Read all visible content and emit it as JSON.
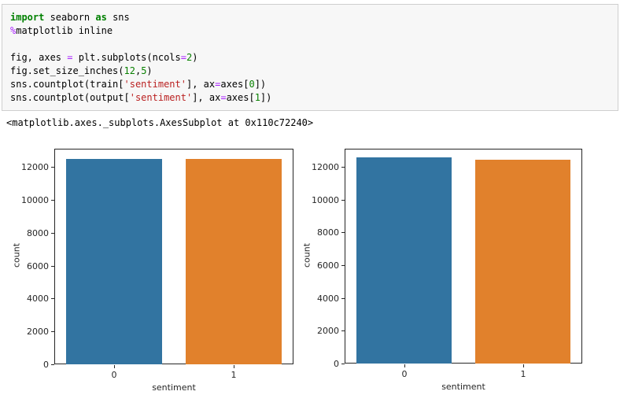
{
  "cell": {
    "code": {
      "lines": [
        {
          "tokens": [
            {
              "t": "import",
              "c": "kw"
            },
            {
              "t": " seaborn ",
              "c": "pl"
            },
            {
              "t": "as",
              "c": "kw"
            },
            {
              "t": " sns",
              "c": "pl"
            }
          ]
        },
        {
          "tokens": [
            {
              "t": "%",
              "c": "op"
            },
            {
              "t": "matplotlib inline",
              "c": "pl"
            }
          ]
        },
        {
          "tokens": []
        },
        {
          "tokens": [
            {
              "t": "fig, axes ",
              "c": "pl"
            },
            {
              "t": "=",
              "c": "op"
            },
            {
              "t": " plt.subplots(ncols",
              "c": "pl"
            },
            {
              "t": "=",
              "c": "op"
            },
            {
              "t": "2",
              "c": "num"
            },
            {
              "t": ")",
              "c": "pl"
            }
          ]
        },
        {
          "tokens": [
            {
              "t": "fig.set_size_inches(",
              "c": "pl"
            },
            {
              "t": "12",
              "c": "num"
            },
            {
              "t": ",",
              "c": "pl"
            },
            {
              "t": "5",
              "c": "num"
            },
            {
              "t": ")",
              "c": "pl"
            }
          ]
        },
        {
          "tokens": [
            {
              "t": "sns.countplot(train[",
              "c": "pl"
            },
            {
              "t": "'sentiment'",
              "c": "str"
            },
            {
              "t": "], ax",
              "c": "pl"
            },
            {
              "t": "=",
              "c": "op"
            },
            {
              "t": "axes[",
              "c": "pl"
            },
            {
              "t": "0",
              "c": "num"
            },
            {
              "t": "])",
              "c": "pl"
            }
          ]
        },
        {
          "tokens": [
            {
              "t": "sns.countplot(output[",
              "c": "pl"
            },
            {
              "t": "'sentiment'",
              "c": "str"
            },
            {
              "t": "], ax",
              "c": "pl"
            },
            {
              "t": "=",
              "c": "op"
            },
            {
              "t": "axes[",
              "c": "pl"
            },
            {
              "t": "1",
              "c": "num"
            },
            {
              "t": "])",
              "c": "pl"
            }
          ]
        }
      ]
    },
    "output_text": "<matplotlib.axes._subplots.AxesSubplot at 0x110c72240>"
  },
  "chart_data": [
    {
      "type": "bar",
      "title": "",
      "categories": [
        "0",
        "1"
      ],
      "values": [
        12500,
        12500
      ],
      "xlabel": "sentiment",
      "ylabel": "count",
      "yticks": [
        0,
        2000,
        4000,
        6000,
        8000,
        10000,
        12000
      ],
      "ylim": [
        0,
        13100
      ],
      "grid": false,
      "legend": "none",
      "bar_colors": [
        "#3274a1",
        "#e1812c"
      ]
    },
    {
      "type": "bar",
      "title": "",
      "categories": [
        "0",
        "1"
      ],
      "values": [
        12550,
        12450
      ],
      "xlabel": "sentiment",
      "ylabel": "count",
      "yticks": [
        0,
        2000,
        4000,
        6000,
        8000,
        10000,
        12000
      ],
      "ylim": [
        0,
        13100
      ],
      "grid": false,
      "legend": "none",
      "bar_colors": [
        "#3274a1",
        "#e1812c"
      ]
    }
  ],
  "colors": {
    "cell_background": "#f7f7f7",
    "cell_border": "#cfcfcf",
    "axis_line": "#262626",
    "bar_blue": "#3274a1",
    "bar_orange": "#e1812c"
  }
}
